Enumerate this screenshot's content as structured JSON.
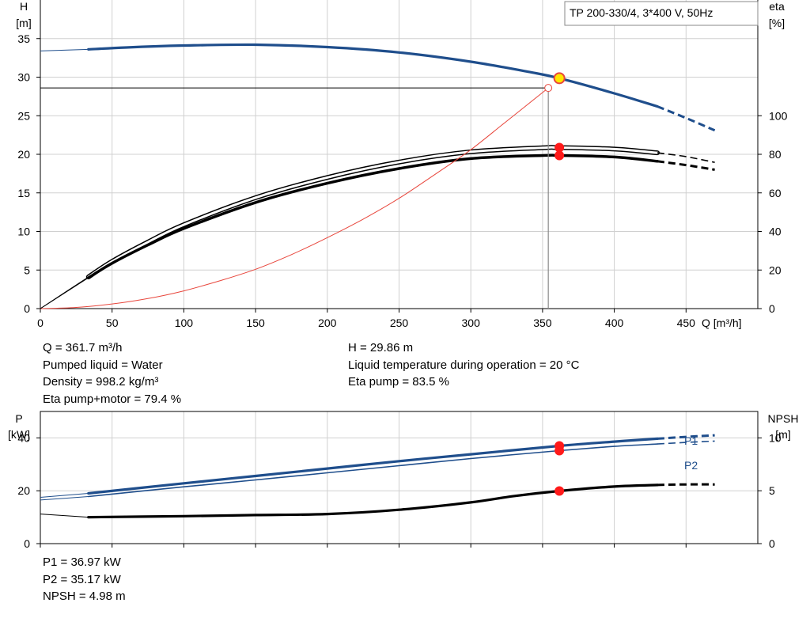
{
  "title": "TP 200-330/4, 3*400 V, 50Hz",
  "chart_data": [
    {
      "type": "line",
      "x_axis": {
        "label": "Q [m³/h]",
        "range": [
          0,
          500
        ],
        "ticks": [
          0,
          50,
          100,
          150,
          200,
          250,
          300,
          350,
          400,
          450
        ]
      },
      "y_axis_left": {
        "label": "H [m]",
        "range": [
          0,
          40
        ],
        "ticks": [
          0,
          5,
          10,
          15,
          20,
          25,
          30,
          35
        ]
      },
      "y_axis_right": {
        "label": "eta [%]",
        "range": [
          0,
          160
        ],
        "ticks": [
          0,
          20,
          40,
          60,
          80,
          100
        ]
      },
      "grid": true,
      "series": [
        {
          "axis": "H",
          "color": "#1F4E8C",
          "x": [
            0,
            33.5,
            60,
            100,
            150,
            200,
            250,
            300,
            340,
            361.7,
            400,
            430
          ],
          "y": [
            33.4,
            33.6,
            33.85,
            34.1,
            34.2,
            33.9,
            33.2,
            32.0,
            30.7,
            29.86,
            27.9,
            26.2
          ],
          "extrapolated": {
            "x": [
              430,
              450,
              470
            ],
            "y": [
              26.2,
              24.7,
              23.1
            ]
          }
        },
        {
          "axis": "eta",
          "color": "#000000",
          "note_style": "outline",
          "x": [
            0,
            33.5,
            50,
            75,
            100,
            150,
            200,
            250,
            300,
            350,
            361.7,
            400,
            430
          ],
          "y": [
            0,
            16.4,
            24.5,
            34.5,
            43.5,
            57.5,
            68.0,
            76.0,
            81.3,
            83.4,
            83.5,
            82.7,
            80.8
          ],
          "extrapolated": {
            "x": [
              430,
              450,
              470
            ],
            "y": [
              80.8,
              78.8,
              75.8
            ]
          }
        },
        {
          "axis": "eta",
          "color": "#000000",
          "note_style": "thick",
          "x": [
            33.5,
            50,
            75,
            100,
            150,
            200,
            250,
            300,
            350,
            361.7,
            400,
            430
          ],
          "y": [
            16.0,
            23.5,
            33.0,
            41.5,
            55.0,
            65.0,
            72.6,
            77.8,
            79.4,
            79.4,
            78.6,
            76.4
          ],
          "extrapolated": {
            "x": [
              430,
              450,
              470
            ],
            "y": [
              76.4,
              74.4,
              72.0
            ]
          }
        },
        {
          "axis": "H",
          "color": "#E8463C",
          "note_style": "system curve",
          "x": [
            0,
            25,
            50,
            75,
            100,
            125,
            150,
            175,
            200,
            225,
            250,
            275,
            300,
            325,
            354
          ],
          "y": [
            0,
            0.15,
            0.6,
            1.3,
            2.3,
            3.6,
            5.1,
            7.0,
            9.2,
            11.6,
            14.3,
            17.4,
            20.6,
            24.3,
            28.6
          ]
        }
      ],
      "operating_points": [
        {
          "x": 361.7,
          "y": 29.86,
          "axis": "H",
          "fill": "#FFE600",
          "stroke": "#E8463C"
        },
        {
          "x": 361.7,
          "y": 83.5,
          "axis": "eta",
          "fill": "#FF1A1A"
        },
        {
          "x": 361.7,
          "y": 79.4,
          "axis": "eta",
          "fill": "#FF1A1A"
        }
      ],
      "crosshair": {
        "x": 354,
        "y": 28.6
      }
    },
    {
      "type": "line",
      "x_axis": {
        "range": [
          0,
          500
        ]
      },
      "y_axis_left": {
        "label": "P [kW]",
        "range": [
          0,
          50
        ],
        "ticks": [
          0,
          20,
          40
        ]
      },
      "y_axis_right": {
        "label": "NPSH [m]",
        "range": [
          0,
          12.5
        ],
        "ticks": [
          0,
          5,
          10
        ]
      },
      "grid": true,
      "series": [
        {
          "name": "P1",
          "axis": "P",
          "color": "#1F4E8C",
          "x": [
            0,
            33.5,
            100,
            150,
            200,
            250,
            300,
            361.7,
            400,
            430
          ],
          "y": [
            17.5,
            19.0,
            22.8,
            25.6,
            28.4,
            31.2,
            33.8,
            36.97,
            38.6,
            39.7
          ],
          "extrapolated": {
            "x": [
              430,
              450,
              470
            ],
            "y": [
              39.7,
              40.4,
              41.0
            ]
          }
        },
        {
          "name": "P2",
          "axis": "P",
          "color": "#1F4E8C",
          "x": [
            0,
            33.5,
            100,
            150,
            200,
            250,
            300,
            361.7,
            400,
            430
          ],
          "y": [
            16.5,
            17.8,
            21.5,
            24.1,
            26.8,
            29.5,
            32.2,
            35.17,
            36.8,
            37.7
          ],
          "extrapolated": {
            "x": [
              430,
              450,
              470
            ],
            "y": [
              37.7,
              38.3,
              38.8
            ]
          }
        },
        {
          "name": "NPSH",
          "axis": "NPSH",
          "color": "#000000",
          "x": [
            0,
            33.5,
            100,
            150,
            200,
            250,
            300,
            330,
            361.7,
            400,
            430
          ],
          "y": [
            2.8,
            2.5,
            2.6,
            2.7,
            2.8,
            3.2,
            3.9,
            4.5,
            4.98,
            5.4,
            5.55
          ],
          "extrapolated": {
            "x": [
              430,
              450,
              470
            ],
            "y": [
              5.55,
              5.6,
              5.6
            ]
          }
        }
      ],
      "series_labels": [
        "P1",
        "P2"
      ],
      "operating_points": [
        {
          "x": 361.7,
          "y": 36.97,
          "axis": "P",
          "fill": "#FF1A1A"
        },
        {
          "x": 361.7,
          "y": 35.17,
          "axis": "P",
          "fill": "#FF1A1A"
        },
        {
          "x": 361.7,
          "y": 4.98,
          "axis": "NPSH",
          "fill": "#FF1A1A"
        }
      ]
    }
  ],
  "info_left_top": [
    "Q = 361.7 m³/h",
    "Pumped liquid = Water",
    "Density = 998.2 kg/m³",
    "Eta pump+motor = 79.4 %"
  ],
  "info_right_top": [
    "H = 29.86 m",
    "Liquid temperature during operation = 20 °C",
    "Eta pump = 83.5 %"
  ],
  "info_bottom": [
    "P1 = 36.97 kW",
    "P2 = 35.17 kW",
    "NPSH = 4.98 m"
  ]
}
